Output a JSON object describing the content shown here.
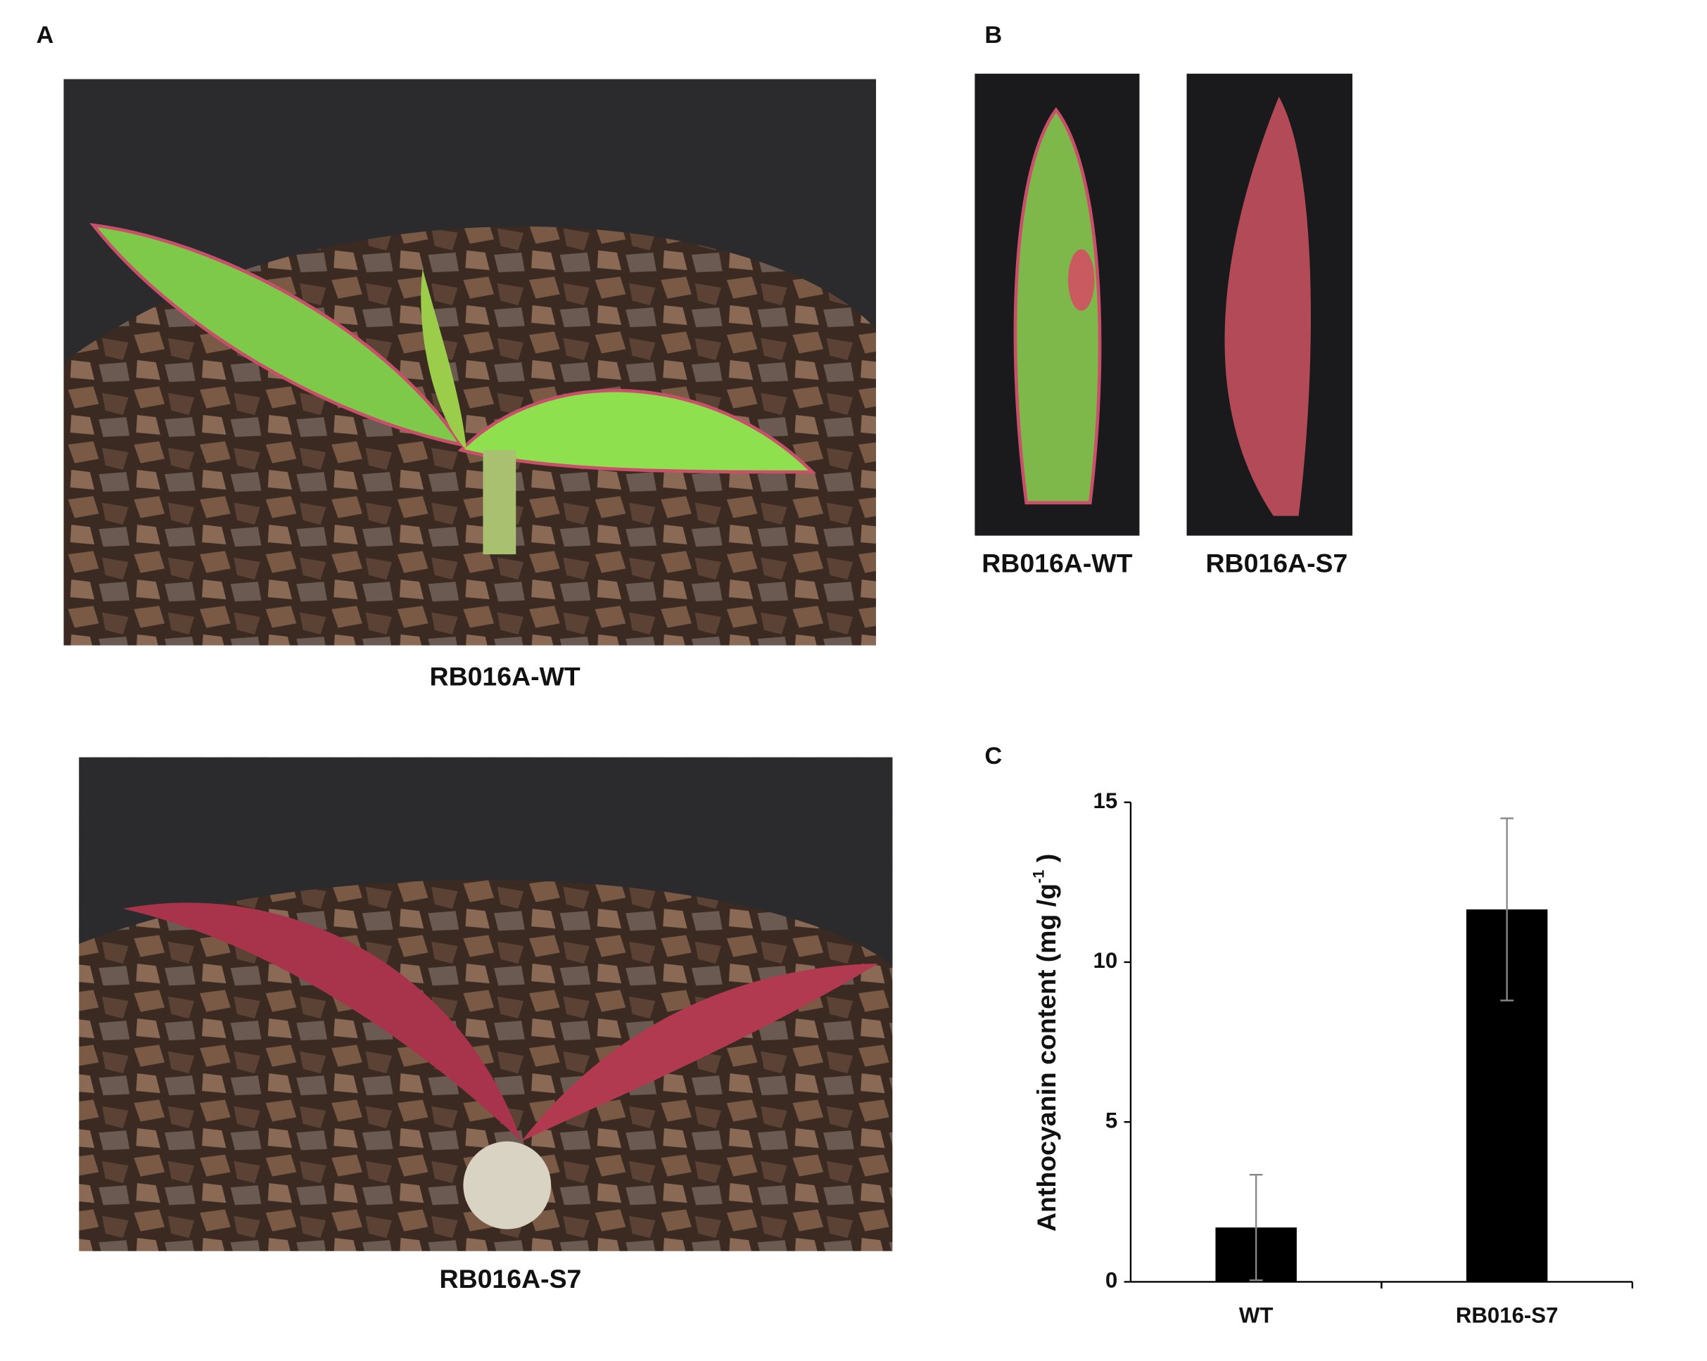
{
  "panels": {
    "a": {
      "label": "A",
      "photo_top_caption": "RB016A-WT",
      "photo_bottom_caption": "RB016A-S7"
    },
    "b": {
      "label": "B",
      "left_caption": "RB016A-WT",
      "right_caption": "RB016A-S7"
    },
    "c": {
      "label": "C"
    }
  },
  "chart_data": {
    "type": "bar",
    "y_label": [
      "Anthocyanin content (mg /g",
      "-1",
      " )"
    ],
    "categories": [
      "WT",
      "RB016-S7"
    ],
    "values": [
      1.7,
      11.65
    ],
    "errors": [
      1.65,
      2.85
    ],
    "color": "#000000",
    "ylim": [
      0,
      15
    ],
    "yticks": [
      0,
      5,
      10,
      15
    ]
  }
}
